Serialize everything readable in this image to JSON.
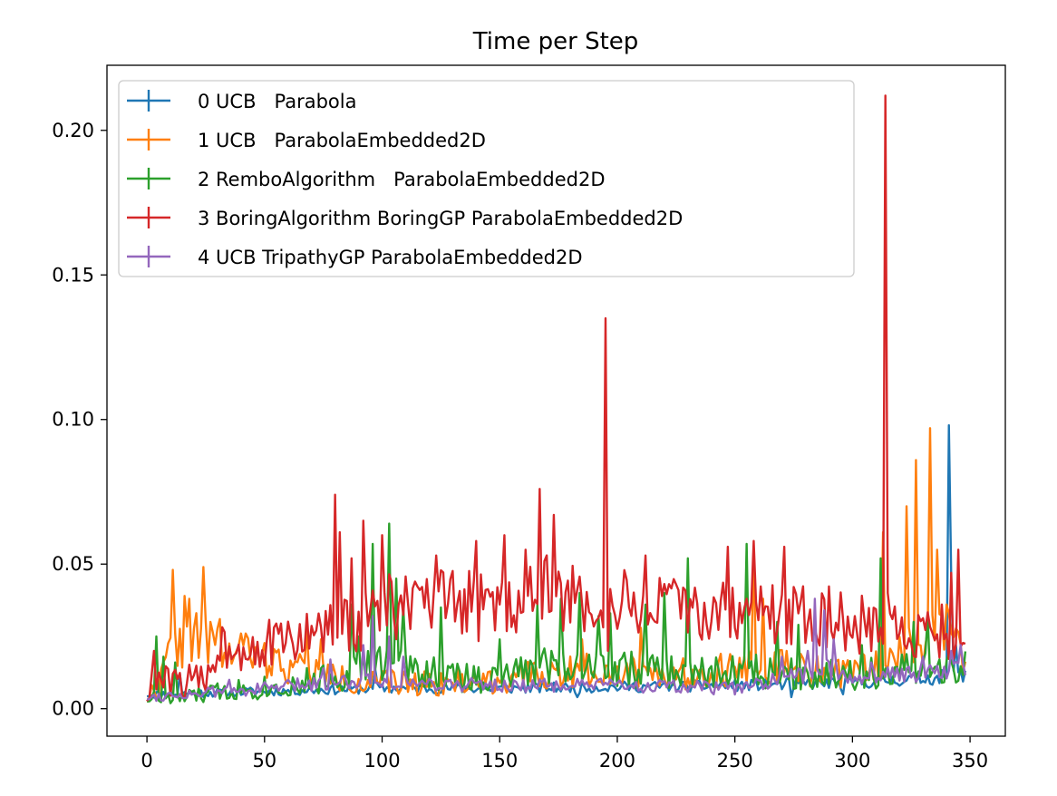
{
  "chart_data": {
    "type": "line",
    "title": "Time per Step",
    "xlabel": "",
    "ylabel": "",
    "xlim": [
      -17,
      365
    ],
    "ylim": [
      -0.0095,
      0.2225
    ],
    "x_ticks": [
      0,
      50,
      100,
      150,
      200,
      250,
      300,
      350
    ],
    "y_ticks": [
      0.0,
      0.05,
      0.1,
      0.15,
      0.2
    ],
    "x_tick_labels": [
      "0",
      "50",
      "100",
      "150",
      "200",
      "250",
      "300",
      "350"
    ],
    "y_tick_labels": [
      "0.00",
      "0.05",
      "0.10",
      "0.15",
      "0.20"
    ],
    "grid": false,
    "legend_position": "upper-left",
    "n_points": 349,
    "series": [
      {
        "name": "0 UCB   Parabola",
        "color": "#1f77b4",
        "base": 0.007,
        "noise": 0.0015,
        "seed": 11,
        "anchors": [
          [
            0,
            0.005
          ],
          [
            50,
            0.006
          ],
          [
            100,
            0.007
          ],
          [
            150,
            0.007
          ],
          [
            200,
            0.0075
          ],
          [
            250,
            0.008
          ],
          [
            300,
            0.009
          ],
          [
            340,
            0.011
          ],
          [
            348,
            0.012
          ]
        ],
        "spikes": [
          [
            14,
            0.012
          ],
          [
            97,
            0.014
          ],
          [
            183,
            0.004
          ],
          [
            274,
            0.004
          ],
          [
            296,
            0.005
          ],
          [
            341,
            0.098
          ],
          [
            342,
            0.045
          ],
          [
            344,
            0.022
          ]
        ]
      },
      {
        "name": "1 UCB   ParabolaEmbedded2D",
        "color": "#ff7f0e",
        "base": 0.01,
        "noise": 0.004,
        "seed": 22,
        "anchors": [
          [
            0,
            0.004
          ],
          [
            5,
            0.008
          ],
          [
            10,
            0.02
          ],
          [
            20,
            0.025
          ],
          [
            30,
            0.02
          ],
          [
            50,
            0.017
          ],
          [
            70,
            0.013
          ],
          [
            90,
            0.009
          ],
          [
            130,
            0.009
          ],
          [
            150,
            0.01
          ],
          [
            180,
            0.013
          ],
          [
            200,
            0.014
          ],
          [
            230,
            0.012
          ],
          [
            260,
            0.015
          ],
          [
            300,
            0.012
          ],
          [
            320,
            0.02
          ],
          [
            340,
            0.025
          ],
          [
            348,
            0.02
          ]
        ],
        "spikes": [
          [
            11,
            0.048
          ],
          [
            16,
            0.039
          ],
          [
            18,
            0.038
          ],
          [
            24,
            0.049
          ],
          [
            27,
            0.03
          ],
          [
            31,
            0.031
          ],
          [
            40,
            0.026
          ],
          [
            42,
            0.026
          ],
          [
            68,
            0.027
          ],
          [
            74,
            0.024
          ],
          [
            165,
            0.016
          ],
          [
            185,
            0.024
          ],
          [
            210,
            0.028
          ],
          [
            243,
            0.016
          ],
          [
            258,
            0.055
          ],
          [
            262,
            0.038
          ],
          [
            313,
            0.061
          ],
          [
            323,
            0.07
          ],
          [
            327,
            0.086
          ],
          [
            333,
            0.097
          ],
          [
            336,
            0.055
          ],
          [
            340,
            0.036
          ]
        ]
      },
      {
        "name": "2 RemboAlgorithm   ParabolaEmbedded2D",
        "color": "#2ca02c",
        "base": 0.009,
        "noise": 0.004,
        "seed": 33,
        "anchors": [
          [
            0,
            0.004
          ],
          [
            10,
            0.003
          ],
          [
            25,
            0.005
          ],
          [
            40,
            0.007
          ],
          [
            60,
            0.008
          ],
          [
            80,
            0.011
          ],
          [
            100,
            0.016
          ],
          [
            130,
            0.011
          ],
          [
            150,
            0.01
          ],
          [
            170,
            0.016
          ],
          [
            200,
            0.014
          ],
          [
            230,
            0.012
          ],
          [
            260,
            0.013
          ],
          [
            300,
            0.012
          ],
          [
            330,
            0.013
          ],
          [
            348,
            0.014
          ]
        ],
        "spikes": [
          [
            4,
            0.025
          ],
          [
            7,
            0.018
          ],
          [
            12,
            0.016
          ],
          [
            87,
            0.036
          ],
          [
            90,
            0.025
          ],
          [
            96,
            0.057
          ],
          [
            103,
            0.064
          ],
          [
            106,
            0.045
          ],
          [
            109,
            0.035
          ],
          [
            125,
            0.035
          ],
          [
            150,
            0.024
          ],
          [
            166,
            0.036
          ],
          [
            176,
            0.038
          ],
          [
            184,
            0.04
          ],
          [
            192,
            0.032
          ],
          [
            197,
            0.033
          ],
          [
            212,
            0.036
          ],
          [
            220,
            0.04
          ],
          [
            230,
            0.052
          ],
          [
            255,
            0.057
          ],
          [
            268,
            0.03
          ],
          [
            277,
            0.029
          ],
          [
            304,
            0.022
          ],
          [
            312,
            0.052
          ],
          [
            326,
            0.03
          ],
          [
            332,
            0.032
          ]
        ]
      },
      {
        "name": "3 BoringAlgorithm BoringGP ParabolaEmbedded2D",
        "color": "#d62728",
        "base": 0.03,
        "noise": 0.009,
        "seed": 44,
        "anchors": [
          [
            0,
            0.005
          ],
          [
            5,
            0.01
          ],
          [
            10,
            0.009
          ],
          [
            25,
            0.01
          ],
          [
            30,
            0.022
          ],
          [
            55,
            0.022
          ],
          [
            75,
            0.027
          ],
          [
            85,
            0.028
          ],
          [
            100,
            0.035
          ],
          [
            130,
            0.036
          ],
          [
            150,
            0.035
          ],
          [
            165,
            0.042
          ],
          [
            180,
            0.037
          ],
          [
            200,
            0.036
          ],
          [
            230,
            0.034
          ],
          [
            260,
            0.033
          ],
          [
            290,
            0.032
          ],
          [
            310,
            0.028
          ],
          [
            340,
            0.026
          ],
          [
            348,
            0.024
          ]
        ],
        "spikes": [
          [
            3,
            0.02
          ],
          [
            80,
            0.074
          ],
          [
            82,
            0.061
          ],
          [
            87,
            0.052
          ],
          [
            92,
            0.065
          ],
          [
            100,
            0.06
          ],
          [
            123,
            0.053
          ],
          [
            140,
            0.058
          ],
          [
            152,
            0.06
          ],
          [
            161,
            0.055
          ],
          [
            167,
            0.076
          ],
          [
            173,
            0.067
          ],
          [
            195,
            0.135
          ],
          [
            196,
            0.02
          ],
          [
            212,
            0.053
          ],
          [
            247,
            0.056
          ],
          [
            258,
            0.058
          ],
          [
            271,
            0.056
          ],
          [
            314,
            0.212
          ],
          [
            315,
            0.04
          ],
          [
            342,
            0.047
          ],
          [
            345,
            0.055
          ]
        ]
      },
      {
        "name": "4 UCB TripathyGP ParabolaEmbedded2D",
        "color": "#9467bd",
        "base": 0.008,
        "noise": 0.002,
        "seed": 55,
        "anchors": [
          [
            0,
            0.004
          ],
          [
            50,
            0.007
          ],
          [
            90,
            0.01
          ],
          [
            110,
            0.009
          ],
          [
            150,
            0.008
          ],
          [
            200,
            0.008
          ],
          [
            250,
            0.007
          ],
          [
            270,
            0.01
          ],
          [
            290,
            0.014
          ],
          [
            300,
            0.011
          ],
          [
            320,
            0.012
          ],
          [
            340,
            0.013
          ],
          [
            348,
            0.014
          ]
        ],
        "spikes": [
          [
            35,
            0.01
          ],
          [
            75,
            0.014
          ],
          [
            78,
            0.017
          ],
          [
            92,
            0.022
          ],
          [
            96,
            0.032
          ],
          [
            103,
            0.025
          ],
          [
            109,
            0.018
          ],
          [
            160,
            0.01
          ],
          [
            270,
            0.018
          ],
          [
            281,
            0.02
          ],
          [
            284,
            0.038
          ],
          [
            288,
            0.034
          ],
          [
            292,
            0.024
          ],
          [
            308,
            0.016
          ],
          [
            330,
            0.018
          ],
          [
            342,
            0.02
          ],
          [
            346,
            0.022
          ]
        ]
      }
    ]
  }
}
